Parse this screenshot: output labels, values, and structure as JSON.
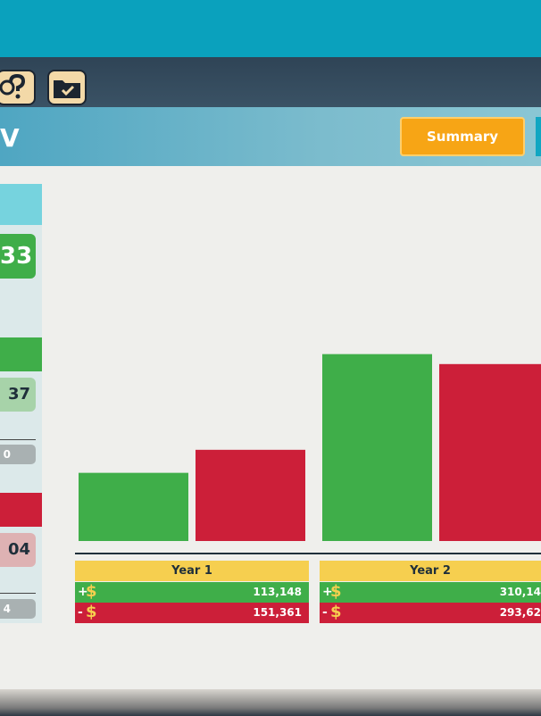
{
  "header": {
    "title_fragment": "V",
    "summary_label": "Summary"
  },
  "toolbar": {
    "icons": [
      "help-question-icon",
      "folder-check-icon"
    ]
  },
  "left_panel": {
    "big_value_fragment": "33",
    "income_value_fragment": "37",
    "income_sub_fragment": "0",
    "expense_value_fragment": "04",
    "expense_sub_fragment": "4"
  },
  "colors": {
    "income": "#3fae49",
    "expense": "#cc1f39",
    "accent": "#f7a515",
    "year_header": "#f6cf4f"
  },
  "chart_data": {
    "type": "bar",
    "categories": [
      "Year 1",
      "Year 2"
    ],
    "series": [
      {
        "name": "+$",
        "values": [
          113148,
          310149
        ]
      },
      {
        "name": "-$",
        "values": [
          151361,
          293621
        ]
      }
    ],
    "ylim": [
      0,
      400000
    ]
  },
  "years": [
    {
      "label": "Year 1",
      "plus_sign": "+",
      "minus_sign": "-",
      "currency": "$",
      "income": "113,148",
      "expense": "151,361"
    },
    {
      "label": "Year 2",
      "plus_sign": "+",
      "minus_sign": "-",
      "currency": "$",
      "income": "310,14",
      "expense": "293,62"
    }
  ]
}
